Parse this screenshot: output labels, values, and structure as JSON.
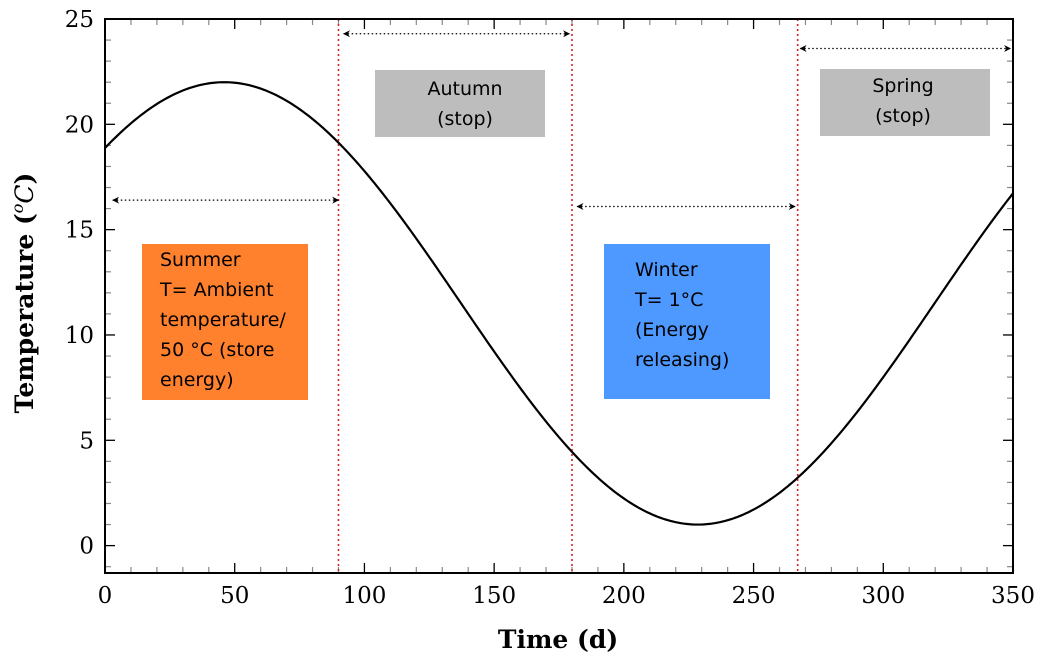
{
  "chart_data": {
    "type": "line",
    "xlabel": "Time (d)",
    "ylabel_main": "Temperature (",
    "ylabel_unit_o": "o",
    "ylabel_unit_C": "C",
    "ylabel_close": ")",
    "xlim": [
      0,
      350
    ],
    "ylim": [
      -1.3,
      25
    ],
    "x_ticks": [
      0,
      50,
      100,
      150,
      200,
      250,
      300,
      350
    ],
    "y_ticks": [
      0,
      5,
      10,
      15,
      20,
      25
    ],
    "grid": false,
    "curve": {
      "model": "mean + amplitude*cos(2*pi*(x - peak_day)/period)",
      "mean": 11.5,
      "amplitude": 10.5,
      "peak_day": 46,
      "period": 365
    },
    "series": [
      {
        "x": [
          0,
          25,
          46,
          75,
          90,
          125,
          150,
          180,
          200,
          229,
          250,
          267,
          300,
          350
        ],
        "y": [
          18.9,
          21.4,
          22.0,
          20.8,
          19.3,
          13.8,
          9.5,
          4.5,
          2.4,
          1.0,
          1.8,
          3.2,
          7.8,
          16.8
        ]
      }
    ],
    "season_boundaries": [
      90,
      180,
      267
    ],
    "boundary_color": "#dd2222",
    "arrows": [
      {
        "x1": 3,
        "x2": 90,
        "y": 16.4
      },
      {
        "x1": 92,
        "x2": 179,
        "y": 24.3
      },
      {
        "x1": 182,
        "x2": 266,
        "y": 16.1
      },
      {
        "x1": 268,
        "x2": 349,
        "y": 23.6
      }
    ],
    "annotations": [
      {
        "lines": [
          "Autumn",
          "(stop)"
        ],
        "bg": "#bdbdbd",
        "align": "middle"
      },
      {
        "lines": [
          "Spring",
          "(stop)"
        ],
        "bg": "#bdbdbd",
        "align": "middle"
      },
      {
        "lines": [
          "Summer",
          "T= Ambient",
          "temperature/",
          "50 °C (store",
          "energy)"
        ],
        "bg": "#ff802d",
        "align": "start"
      },
      {
        "lines": [
          "Winter",
          "T= 1°C",
          "(Energy",
          "releasing)"
        ],
        "bg": "#4d99ff",
        "align": "start"
      }
    ]
  }
}
